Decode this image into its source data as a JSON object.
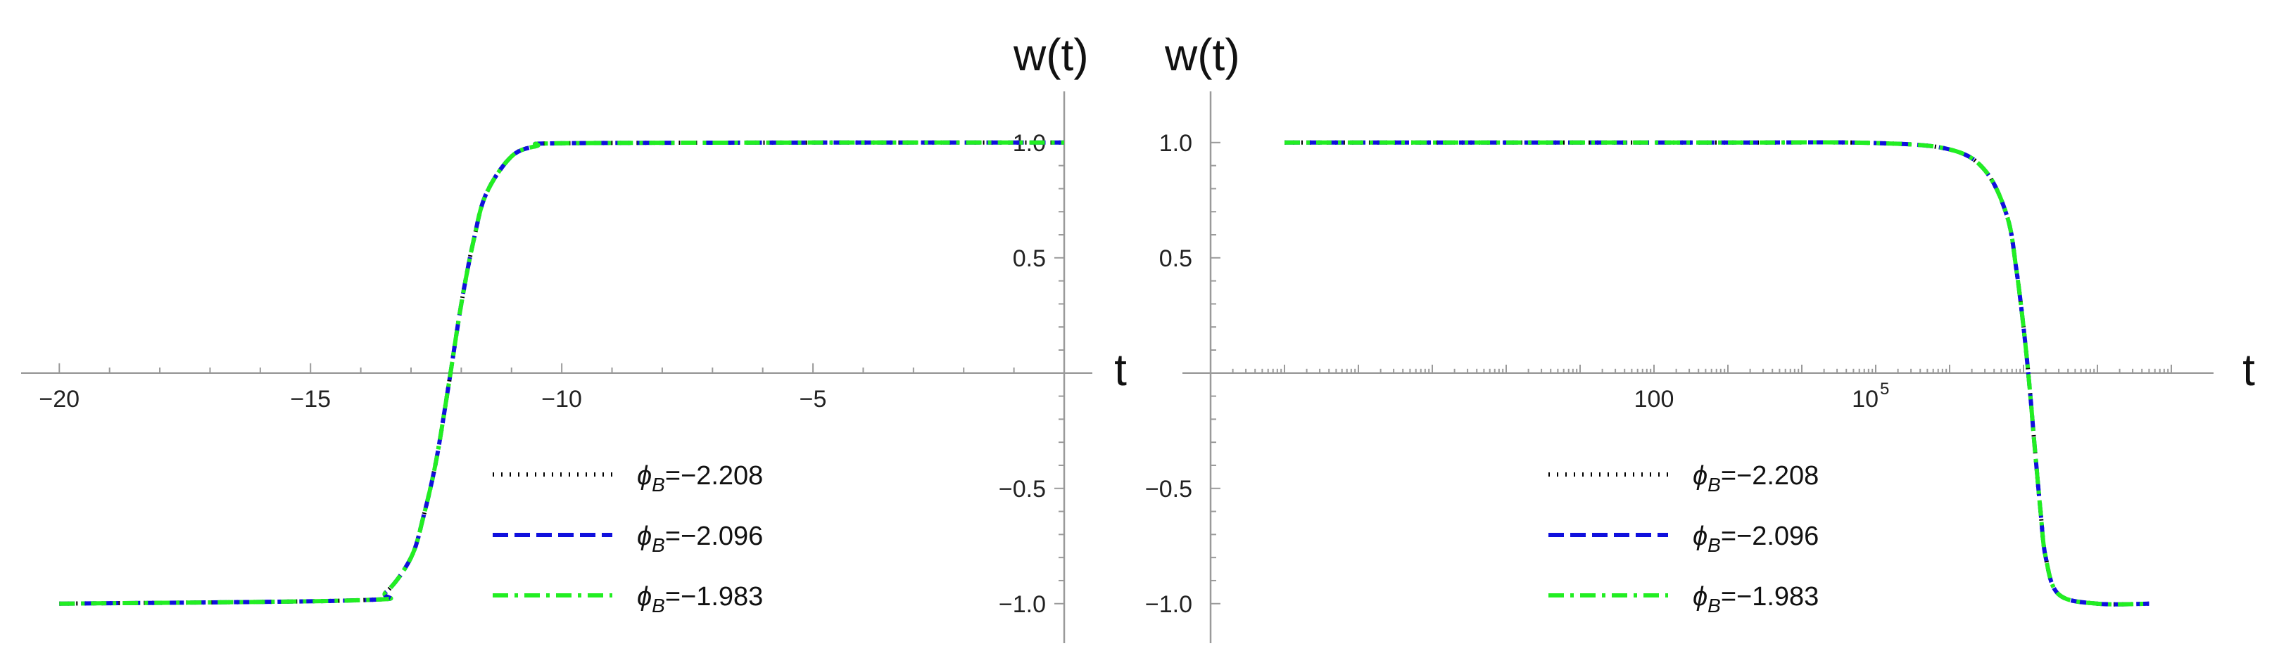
{
  "chart_data": [
    {
      "type": "line",
      "xlabel": "t",
      "ylabel": "w(t)",
      "xlim": [
        -20.2,
        0
      ],
      "ylim": [
        -1.08,
        1.1
      ],
      "x_ticks": [
        {
          "value": -20,
          "label": "−20"
        },
        {
          "value": -15,
          "label": "−15"
        },
        {
          "value": -10,
          "label": "−10"
        },
        {
          "value": -5,
          "label": "−5"
        }
      ],
      "y_ticks": [
        {
          "value": 1.0,
          "label": "1.0"
        },
        {
          "value": 0.5,
          "label": "0.5"
        },
        {
          "value": -0.5,
          "label": "−0.5"
        },
        {
          "value": -1.0,
          "label": "−1.0"
        }
      ],
      "legend_placement": "lower-right",
      "series": [
        {
          "name": "ϕB=−2.208",
          "color": "#000000",
          "style": "dotted",
          "x": [
            -20,
            -14,
            -13.5,
            -13,
            -12.75,
            -12.5,
            -12.25,
            -12,
            -11.75,
            -11.5,
            -11,
            -10.5,
            -10,
            -5,
            0
          ],
          "y": [
            -1,
            -0.985,
            -0.95,
            -0.8,
            -0.62,
            -0.38,
            -0.05,
            0.3,
            0.58,
            0.78,
            0.94,
            0.985,
            0.997,
            1,
            1
          ]
        },
        {
          "name": "ϕB=−2.096",
          "color": "#1010dd",
          "style": "dashed",
          "x": [
            -20,
            -14,
            -13.5,
            -13,
            -12.75,
            -12.5,
            -12.25,
            -12,
            -11.75,
            -11.5,
            -11,
            -10.5,
            -10,
            -5,
            0
          ],
          "y": [
            -1,
            -0.985,
            -0.95,
            -0.8,
            -0.62,
            -0.38,
            -0.05,
            0.3,
            0.58,
            0.78,
            0.94,
            0.985,
            0.997,
            1,
            1
          ]
        },
        {
          "name": "ϕB=−1.983",
          "color": "#22ee22",
          "style": "dashdot",
          "x": [
            -20,
            -14,
            -13.5,
            -13,
            -12.75,
            -12.5,
            -12.25,
            -12,
            -11.75,
            -11.5,
            -11,
            -10.5,
            -10,
            -5,
            0
          ],
          "y": [
            -1,
            -0.985,
            -0.95,
            -0.8,
            -0.62,
            -0.38,
            -0.05,
            0.3,
            0.58,
            0.78,
            0.94,
            0.985,
            0.997,
            1,
            1
          ]
        }
      ]
    },
    {
      "type": "line",
      "xlabel": "t",
      "ylabel": "w(t)",
      "x_scale": "log",
      "xlim": [
        0.0001,
        1000000000
      ],
      "ylim": [
        -1.08,
        1.1
      ],
      "x_ticks": [
        {
          "value": 100,
          "label": "100"
        },
        {
          "value": 100000,
          "label": "10",
          "sup": "5"
        }
      ],
      "y_ticks": [
        {
          "value": 1.0,
          "label": "1.0"
        },
        {
          "value": 0.5,
          "label": "0.5"
        },
        {
          "value": -0.5,
          "label": "−0.5"
        },
        {
          "value": -1.0,
          "label": "−1.0"
        }
      ],
      "legend_placement": "lower-center",
      "series": [
        {
          "name": "ϕB=−2.208",
          "color": "#000000",
          "style": "dotted",
          "x": [
            0.001,
            1,
            1000,
            100000,
            1000000,
            3000000,
            6000000,
            8000000,
            10000000,
            12000000,
            14000000,
            17000000,
            20000000,
            30000000,
            100000000,
            500000000
          ],
          "y": [
            1,
            1,
            1,
            0.998,
            0.97,
            0.88,
            0.68,
            0.45,
            0.2,
            -0.05,
            -0.3,
            -0.6,
            -0.8,
            -0.96,
            -1,
            -1
          ]
        },
        {
          "name": "ϕB=−2.096",
          "color": "#1010dd",
          "style": "dashed",
          "x": [
            0.001,
            1,
            1000,
            100000,
            1000000,
            3000000,
            6000000,
            8000000,
            10000000,
            12000000,
            14000000,
            17000000,
            20000000,
            30000000,
            100000000,
            500000000
          ],
          "y": [
            1,
            1,
            1,
            0.998,
            0.97,
            0.88,
            0.68,
            0.45,
            0.2,
            -0.05,
            -0.3,
            -0.6,
            -0.8,
            -0.96,
            -1,
            -1
          ]
        },
        {
          "name": "ϕB=−1.983",
          "color": "#22ee22",
          "style": "dashdot",
          "x": [
            0.001,
            1,
            1000,
            100000,
            1000000,
            3000000,
            6000000,
            8000000,
            10000000,
            12000000,
            14000000,
            17000000,
            20000000,
            30000000,
            100000000,
            500000000
          ],
          "y": [
            1,
            1,
            1,
            0.998,
            0.97,
            0.88,
            0.68,
            0.45,
            0.2,
            -0.05,
            -0.3,
            -0.6,
            -0.8,
            -0.96,
            -1,
            -1
          ]
        }
      ]
    }
  ]
}
